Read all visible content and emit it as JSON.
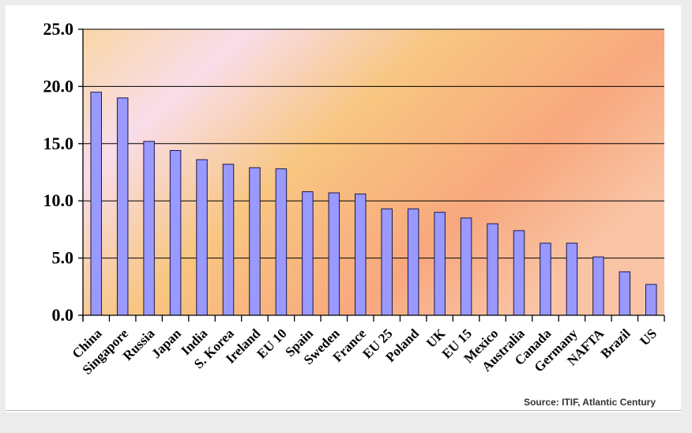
{
  "chart_data": {
    "type": "bar",
    "title": "",
    "xlabel": "",
    "ylabel": "",
    "ylim": [
      0,
      25
    ],
    "yticks": [
      "0.0",
      "5.0",
      "10.0",
      "15.0",
      "20.0",
      "25.0"
    ],
    "grid": true,
    "categories": [
      "China",
      "Singapore",
      "Russia",
      "Japan",
      "India",
      "S. Korea",
      "Ireland",
      "EU 10",
      "Spain",
      "Sweden",
      "France",
      "EU 25",
      "Poland",
      "UK",
      "EU 15",
      "Mexico",
      "Australia",
      "Canada",
      "Germany",
      "NAFTA",
      "Brazil",
      "US"
    ],
    "values": [
      19.5,
      19.0,
      15.2,
      14.4,
      13.6,
      13.2,
      12.9,
      12.8,
      10.8,
      10.7,
      10.6,
      9.3,
      9.3,
      9.0,
      8.5,
      8.0,
      7.4,
      6.3,
      6.3,
      5.1,
      3.8,
      2.7
    ],
    "colors": {
      "bar": "#9999ff",
      "bar_edge": "#1a1a4a",
      "grid": "#000000"
    }
  },
  "source": "Source: ITIF, Atlantic Century"
}
